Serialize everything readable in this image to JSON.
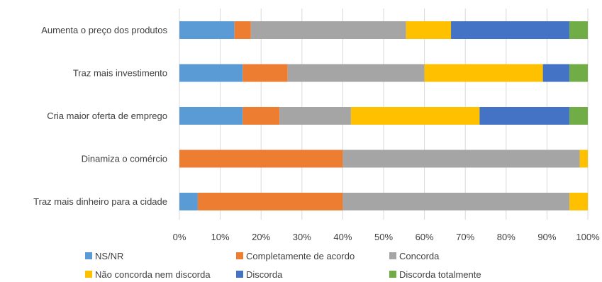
{
  "chart_data": {
    "type": "bar",
    "orientation": "horizontal",
    "stacked": "percent",
    "categories": [
      "Aumenta o preço dos produtos",
      "Traz mais investimento",
      "Cria maior oferta de emprego",
      "Dinamiza o comércio",
      "Traz mais dinheiro para a cidade"
    ],
    "series": [
      {
        "name": "NS/NR",
        "color": "#5B9BD5",
        "values": [
          13.5,
          15.5,
          15.5,
          0,
          4.5
        ]
      },
      {
        "name": "Completamente de acordo",
        "color": "#ED7D31",
        "values": [
          4,
          11,
          9,
          40,
          35.5
        ]
      },
      {
        "name": "Concorda",
        "color": "#A5A5A5",
        "values": [
          38,
          33.5,
          17.5,
          58,
          55.5
        ]
      },
      {
        "name": "Não concorda nem discorda",
        "color": "#FFC000",
        "values": [
          11,
          29,
          31.5,
          2,
          4.5
        ]
      },
      {
        "name": "Discorda",
        "color": "#4472C4",
        "values": [
          29,
          6.5,
          22,
          0,
          0
        ]
      },
      {
        "name": "Discorda totalmente",
        "color": "#70AD47",
        "values": [
          4.5,
          4.5,
          4.5,
          0,
          0
        ]
      }
    ],
    "xticks": [
      "0%",
      "10%",
      "20%",
      "30%",
      "40%",
      "50%",
      "60%",
      "70%",
      "80%",
      "90%",
      "100%"
    ],
    "xlim": [
      0,
      100
    ],
    "grid": true,
    "legend_position": "bottom"
  }
}
